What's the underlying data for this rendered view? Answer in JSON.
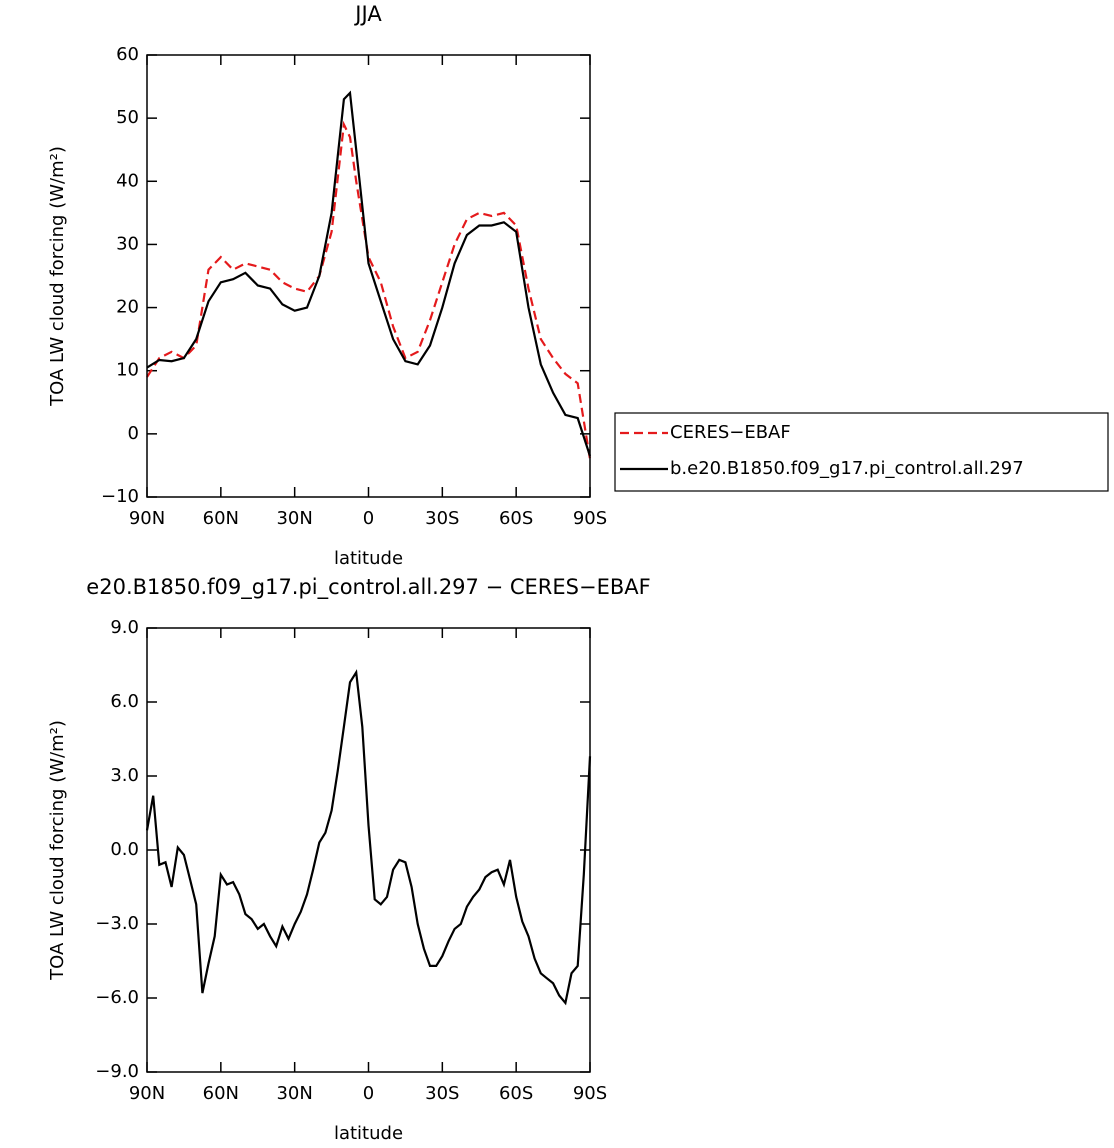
{
  "chart_data": [
    {
      "type": "line",
      "title": "JJA",
      "xlabel": "latitude",
      "ylabel": "TOA LW cloud forcing (W/m²)",
      "x": [
        90,
        85,
        80,
        75,
        70,
        65,
        60,
        55,
        50,
        45,
        40,
        35,
        30,
        25,
        20,
        15,
        10,
        7.5,
        5,
        0,
        -5,
        -10,
        -15,
        -20,
        -25,
        -30,
        -35,
        -40,
        -45,
        -50,
        -55,
        -60,
        -65,
        -70,
        -75,
        -80,
        -85,
        -90
      ],
      "series": [
        {
          "name": "CERES−EBAF",
          "color": "#e41a1c",
          "dash": "dashed",
          "values": [
            9,
            12,
            13,
            12,
            14,
            26,
            28,
            26,
            27,
            26.5,
            26,
            24,
            23,
            22.5,
            25,
            32,
            49,
            47,
            40,
            28,
            24,
            17,
            12,
            13,
            18,
            24,
            30,
            34,
            35,
            34.5,
            35,
            33,
            23,
            15,
            12,
            9.5,
            8,
            -4
          ]
        },
        {
          "name": "b.e20.B1850.f09_g17.pi_control.all.297",
          "color": "#000000",
          "dash": "solid",
          "values": [
            10.5,
            11.7,
            11.5,
            12,
            15,
            21,
            24,
            24.5,
            25.5,
            23.5,
            23,
            20.5,
            19.5,
            20,
            25,
            35,
            53,
            54,
            45,
            27,
            21,
            15,
            11.5,
            11,
            14,
            20,
            27,
            31.5,
            33,
            33,
            33.5,
            32,
            20,
            11,
            6.5,
            3,
            2.5,
            -3.5
          ]
        }
      ],
      "xlim": [
        90,
        -90
      ],
      "xticks": [
        {
          "value": 90,
          "label": "90N"
        },
        {
          "value": 60,
          "label": "60N"
        },
        {
          "value": 30,
          "label": "30N"
        },
        0,
        {
          "value": -30,
          "label": "30S"
        },
        {
          "value": -60,
          "label": "60S"
        },
        {
          "value": -90,
          "label": "90S"
        }
      ],
      "ylim": [
        -10,
        60
      ],
      "yticks": [
        {
          "value": -10,
          "label": "−10"
        },
        0,
        10,
        20,
        30,
        40,
        50,
        60
      ],
      "legend": "right"
    },
    {
      "type": "line",
      "title": "e20.B1850.f09_g17.pi_control.all.297 − CERES−EBAF",
      "xlabel": "latitude",
      "ylabel": "TOA LW cloud forcing (W/m²)",
      "x": [
        90,
        87.5,
        85,
        82.5,
        80,
        77.5,
        75,
        72.5,
        70,
        67.5,
        65,
        62.5,
        60,
        57.5,
        55,
        52.5,
        50,
        47.5,
        45,
        42.5,
        40,
        37.5,
        35,
        32.5,
        30,
        27.5,
        25,
        22.5,
        20,
        17.5,
        15,
        12.5,
        10,
        7.5,
        5,
        2.5,
        0,
        -2.5,
        -5,
        -7.5,
        -10,
        -12.5,
        -15,
        -17.5,
        -20,
        -22.5,
        -25,
        -27.5,
        -30,
        -32.5,
        -35,
        -37.5,
        -40,
        -42.5,
        -45,
        -47.5,
        -50,
        -52.5,
        -55,
        -57.5,
        -60,
        -62.5,
        -65,
        -67.5,
        -70,
        -72.5,
        -75,
        -77.5,
        -80,
        -82.5,
        -85,
        -87.5,
        -90
      ],
      "series": [
        {
          "color": "#000000",
          "dash": "solid",
          "values": [
            0.8,
            2.2,
            -0.6,
            -0.5,
            -1.5,
            0.1,
            -0.2,
            -1.2,
            -2.2,
            -5.8,
            -4.6,
            -3.5,
            -1.0,
            -1.4,
            -1.3,
            -1.8,
            -2.6,
            -2.8,
            -3.2,
            -3.0,
            -3.5,
            -3.9,
            -3.1,
            -3.6,
            -3.0,
            -2.5,
            -1.8,
            -0.8,
            0.3,
            0.7,
            1.6,
            3.2,
            5.0,
            6.8,
            7.2,
            5.0,
            1.0,
            -2.0,
            -2.2,
            -1.9,
            -0.8,
            -0.4,
            -0.5,
            -1.5,
            -3.0,
            -4.0,
            -4.7,
            -4.7,
            -4.3,
            -3.7,
            -3.2,
            -3.0,
            -2.3,
            -1.9,
            -1.6,
            -1.1,
            -0.9,
            -0.8,
            -1.4,
            -0.4,
            -1.9,
            -2.9,
            -3.5,
            -4.4,
            -5.0,
            -5.2,
            -5.4,
            -5.9,
            -6.2,
            -5.0,
            -4.7,
            -1.0,
            3.8
          ]
        }
      ],
      "xlim": [
        90,
        -90
      ],
      "xticks": [
        {
          "value": 90,
          "label": "90N"
        },
        {
          "value": 60,
          "label": "60N"
        },
        {
          "value": 30,
          "label": "30N"
        },
        0,
        {
          "value": -30,
          "label": "30S"
        },
        {
          "value": -60,
          "label": "60S"
        },
        {
          "value": -90,
          "label": "90S"
        }
      ],
      "ylim": [
        -9,
        9
      ],
      "yticks": [
        {
          "value": -9,
          "label": "−9.0"
        },
        {
          "value": -6,
          "label": "−6.0"
        },
        {
          "value": -3,
          "label": "−3.0"
        },
        {
          "value": 0,
          "label": "0.0"
        },
        {
          "value": 3,
          "label": "3.0"
        },
        {
          "value": 6,
          "label": "6.0"
        },
        {
          "value": 9,
          "label": "9.0"
        }
      ]
    }
  ]
}
